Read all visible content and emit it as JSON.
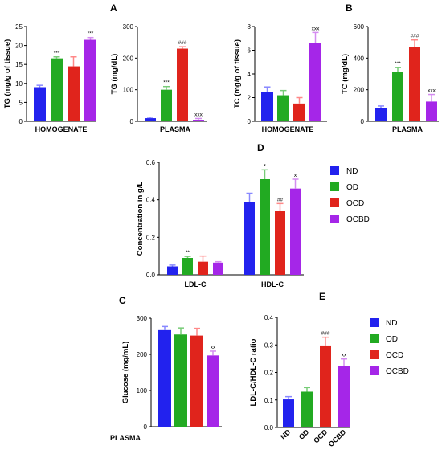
{
  "panel_letters": [
    "A",
    "B",
    "C",
    "D",
    "E"
  ],
  "colors": {
    "ND": "#2222ee",
    "OD": "#22aa22",
    "OCD": "#e0241c",
    "OCBD": "#a526e8",
    "err_ND": "#8888ff",
    "err_OD": "#77cc77",
    "err_OCD": "#ff8888",
    "err_OCBD": "#d48cf0"
  },
  "groups": [
    "ND",
    "OD",
    "OCD",
    "OCBD"
  ],
  "chart_data": [
    {
      "id": "tg_homogenate",
      "panel": "A",
      "type": "bar",
      "categories": [
        "ND",
        "OD",
        "OCD",
        "OCBD"
      ],
      "values": [
        9,
        16.6,
        14.5,
        21.5
      ],
      "errors": [
        0.5,
        0.4,
        2.5,
        0.6
      ],
      "annotations": [
        "",
        "***",
        "",
        "***"
      ],
      "ylabel": "TG (mg/g of tissue)",
      "xlabel": "HOMOGENATE",
      "ylim": [
        0,
        25
      ],
      "yticks": [
        0,
        5,
        10,
        15,
        20,
        25
      ]
    },
    {
      "id": "tg_plasma",
      "panel": "A",
      "type": "bar",
      "categories": [
        "ND",
        "OD",
        "OCD",
        "OCBD"
      ],
      "values": [
        10,
        100,
        230,
        5
      ],
      "errors": [
        3,
        10,
        6,
        4
      ],
      "annotations": [
        "",
        "***",
        "###",
        "xxx"
      ],
      "ylabel": "TG (mg/dL)",
      "xlabel": "PLASMA",
      "ylim": [
        0,
        300
      ],
      "yticks": [
        0,
        100,
        200,
        300
      ]
    },
    {
      "id": "tc_homogenate",
      "panel": "A",
      "type": "bar",
      "categories": [
        "ND",
        "OD",
        "OCD",
        "OCBD"
      ],
      "values": [
        2.5,
        2.2,
        1.5,
        6.6
      ],
      "errors": [
        0.4,
        0.4,
        0.5,
        0.9
      ],
      "annotations": [
        "",
        "",
        "",
        "xxx"
      ],
      "ylabel": "TC (mg/g of tissue)",
      "xlabel": "HOMOGENATE",
      "ylim": [
        0,
        8
      ],
      "yticks": [
        0,
        2,
        4,
        6,
        8
      ]
    },
    {
      "id": "tc_plasma",
      "panel": "B",
      "type": "bar",
      "categories": [
        "ND",
        "OD",
        "OCD",
        "OCBD"
      ],
      "values": [
        85,
        315,
        470,
        125
      ],
      "errors": [
        12,
        25,
        45,
        45
      ],
      "annotations": [
        "",
        "***",
        "###",
        "xxx"
      ],
      "ylabel": "TC (mg/dL)",
      "xlabel": "PLASMA",
      "ylim": [
        0,
        600
      ],
      "yticks": [
        0,
        200,
        400,
        600
      ]
    },
    {
      "id": "lipoproteins",
      "panel": "D",
      "type": "bar",
      "categories": [
        "LDL-C",
        "HDL-C"
      ],
      "series": [
        {
          "name": "ND",
          "values": [
            0.045,
            0.39
          ],
          "errors": [
            0.007,
            0.045
          ]
        },
        {
          "name": "OD",
          "values": [
            0.09,
            0.51
          ],
          "errors": [
            0.008,
            0.05
          ]
        },
        {
          "name": "OCD",
          "values": [
            0.07,
            0.34
          ],
          "errors": [
            0.03,
            0.04
          ]
        },
        {
          "name": "OCBD",
          "values": [
            0.065,
            0.46
          ],
          "errors": [
            0.005,
            0.05
          ]
        }
      ],
      "annotations": [
        [
          "",
          "**",
          "",
          ""
        ],
        [
          "",
          "*",
          "##",
          "x"
        ]
      ],
      "ylabel": "Concentration in g/L",
      "ylim": [
        0,
        0.6
      ],
      "yticks": [
        "0.0",
        "0.2",
        "0.4",
        "0.6"
      ],
      "legend": "right"
    },
    {
      "id": "glucose",
      "panel": "C",
      "type": "bar",
      "categories": [
        "ND",
        "OD",
        "OCD",
        "OCBD"
      ],
      "values": [
        267,
        255,
        252,
        197
      ],
      "errors": [
        10,
        18,
        20,
        12
      ],
      "annotations": [
        "",
        "",
        "",
        "xx"
      ],
      "ylabel": "Glucose (mg/mL)",
      "xlabel": "PLASMA",
      "ylim": [
        0,
        300
      ],
      "yticks": [
        0,
        100,
        200,
        300
      ]
    },
    {
      "id": "ldl_hdl_ratio",
      "panel": "E",
      "type": "bar",
      "categories": [
        "ND",
        "OD",
        "OCD",
        "OCBD"
      ],
      "values": [
        0.102,
        0.13,
        0.298,
        0.224
      ],
      "errors": [
        0.01,
        0.015,
        0.03,
        0.025
      ],
      "annotations": [
        "",
        "",
        "###",
        "xx"
      ],
      "ylabel": "LDL-C/HDL-C ratio",
      "ylim": [
        0,
        0.4
      ],
      "yticks": [
        "0.0",
        "0.1",
        "0.2",
        "0.3",
        "0.4"
      ],
      "legend": "right"
    }
  ]
}
